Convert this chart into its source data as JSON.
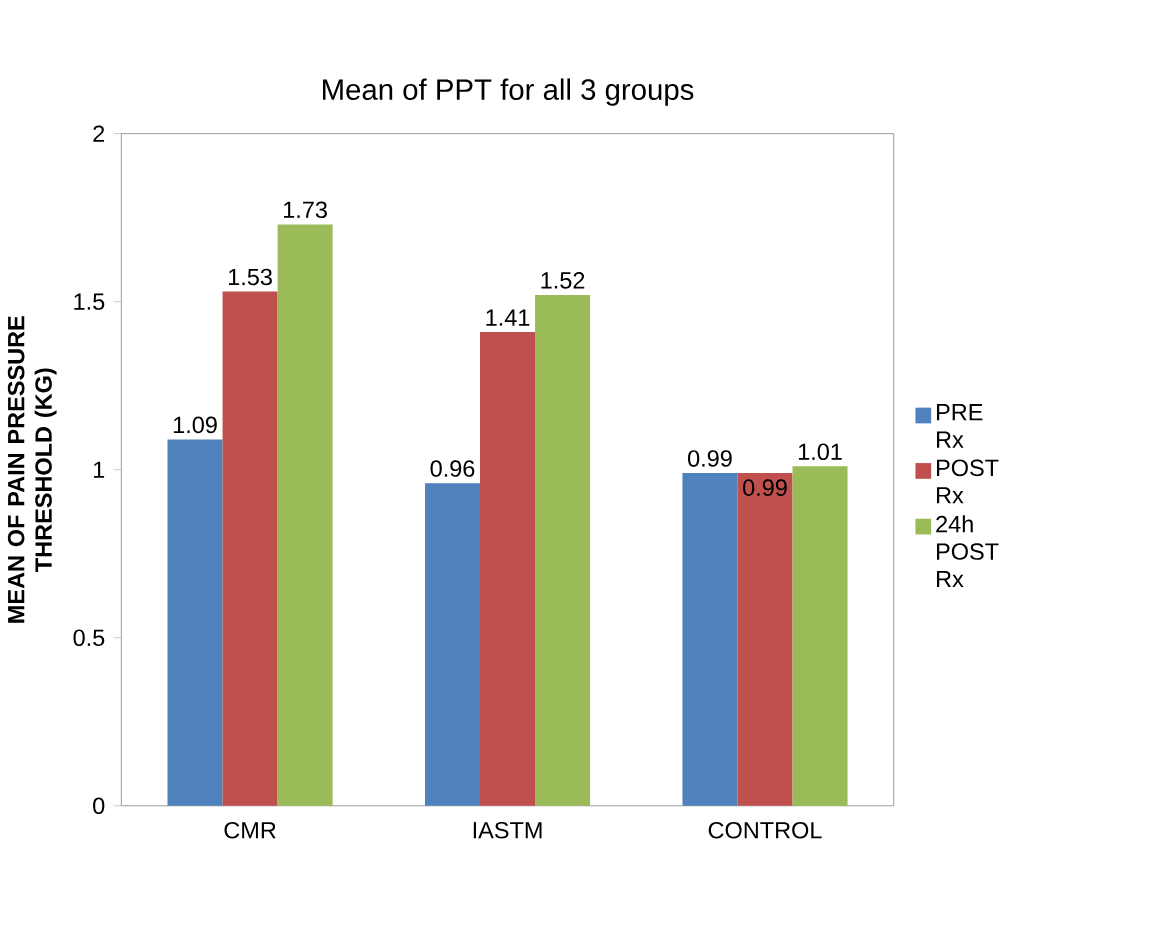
{
  "chart_data": {
    "type": "bar",
    "title": "Mean of PPT for all 3 groups",
    "ylabel": "MEAN OF PAIN PRESSURE THRESHOLD (KG)",
    "categories": [
      "CMR",
      "IASTM",
      "CONTROL"
    ],
    "series": [
      {
        "name": "PRE Rx",
        "color": "#4f81bd",
        "values": [
          1.09,
          0.96,
          0.99
        ]
      },
      {
        "name": "POST Rx",
        "color": "#c0504d",
        "values": [
          1.53,
          1.41,
          0.99
        ]
      },
      {
        "name": "24h POST Rx",
        "color": "#9bbb59",
        "values": [
          1.73,
          1.52,
          1.01
        ]
      }
    ],
    "ylim": [
      0,
      2
    ],
    "yticks": [
      0,
      0.5,
      1,
      1.5,
      2
    ],
    "data_labels": true,
    "legend": "right",
    "grid": false
  }
}
